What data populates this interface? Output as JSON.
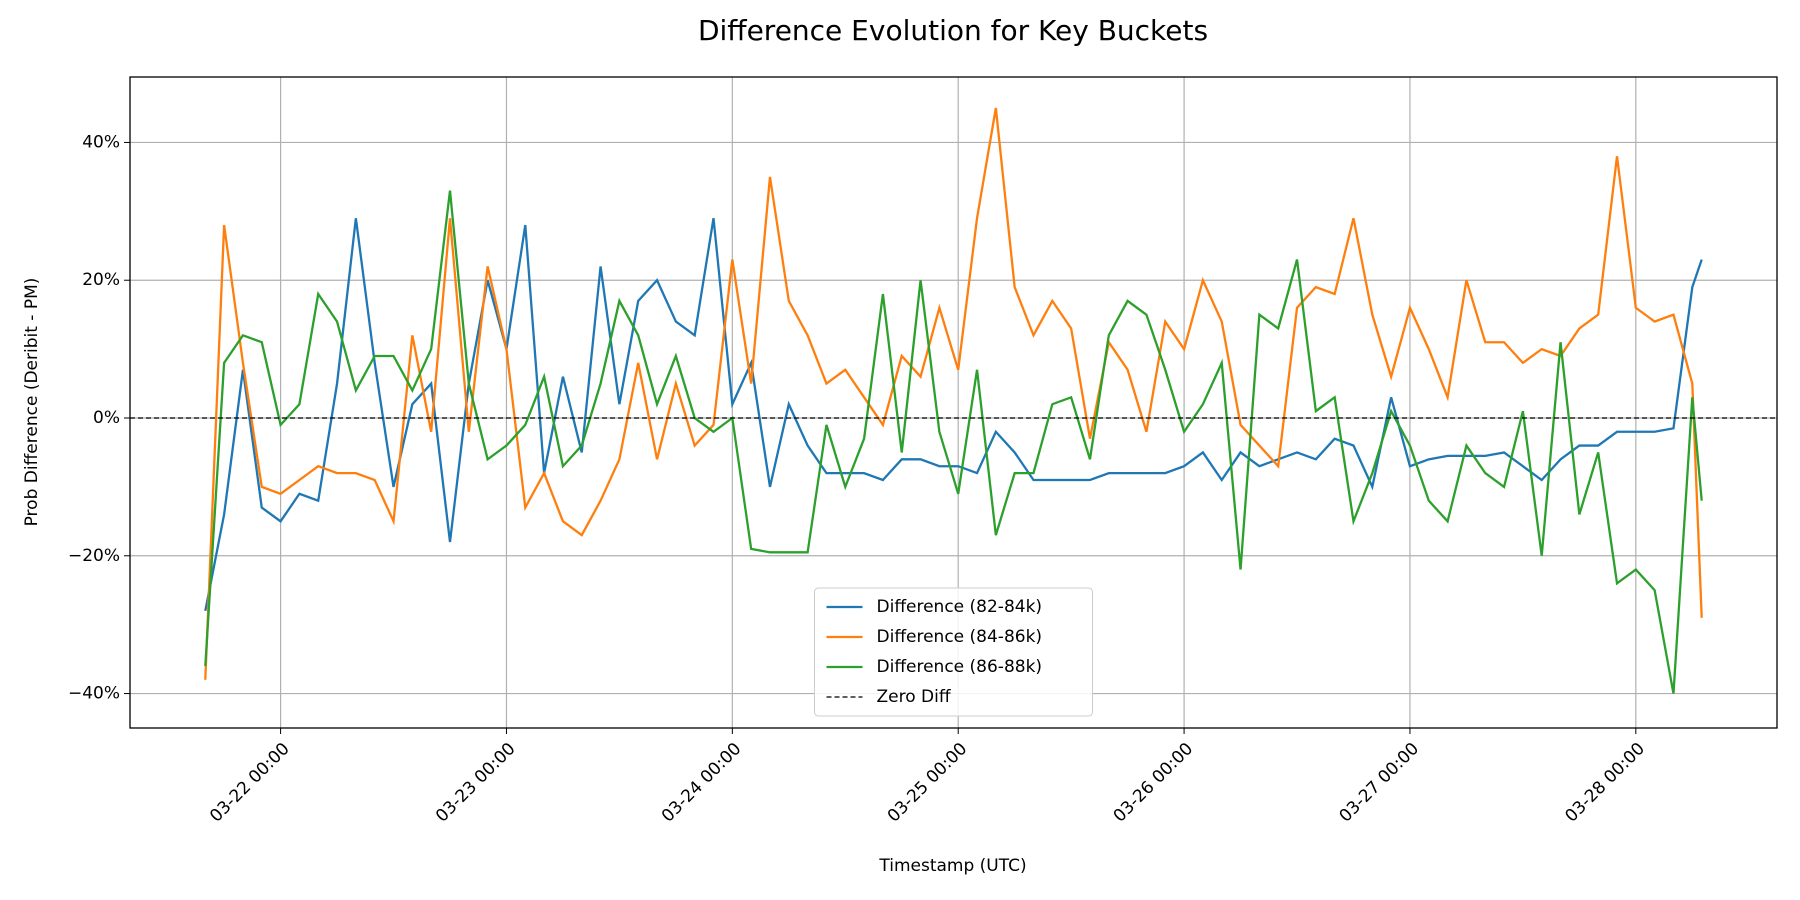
{
  "chart_data": {
    "type": "line",
    "title": "Difference Evolution for Key Buckets",
    "x_label": "Timestamp (UTC)",
    "y_label": "Prob Difference (Deribit - PM)",
    "x": [
      "03-21 16:00",
      "03-21 18:00",
      "03-21 20:00",
      "03-21 22:00",
      "03-22 00:00",
      "03-22 02:00",
      "03-22 04:00",
      "03-22 06:00",
      "03-22 08:00",
      "03-22 10:00",
      "03-22 12:00",
      "03-22 14:00",
      "03-22 16:00",
      "03-22 18:00",
      "03-22 20:00",
      "03-22 22:00",
      "03-23 00:00",
      "03-23 02:00",
      "03-23 04:00",
      "03-23 06:00",
      "03-23 08:00",
      "03-23 10:00",
      "03-23 12:00",
      "03-23 14:00",
      "03-23 16:00",
      "03-23 18:00",
      "03-23 20:00",
      "03-23 22:00",
      "03-24 00:00",
      "03-24 02:00",
      "03-24 04:00",
      "03-24 06:00",
      "03-24 08:00",
      "03-24 10:00",
      "03-24 12:00",
      "03-24 14:00",
      "03-24 16:00",
      "03-24 18:00",
      "03-24 20:00",
      "03-24 22:00",
      "03-25 00:00",
      "03-25 02:00",
      "03-25 04:00",
      "03-25 06:00",
      "03-25 08:00",
      "03-25 10:00",
      "03-25 12:00",
      "03-25 14:00",
      "03-25 16:00",
      "03-25 18:00",
      "03-25 20:00",
      "03-25 22:00",
      "03-26 00:00",
      "03-26 02:00",
      "03-26 04:00",
      "03-26 06:00",
      "03-26 08:00",
      "03-26 10:00",
      "03-26 12:00",
      "03-26 14:00",
      "03-26 16:00",
      "03-26 18:00",
      "03-26 20:00",
      "03-26 22:00",
      "03-27 00:00",
      "03-27 02:00",
      "03-27 04:00",
      "03-27 06:00",
      "03-27 08:00",
      "03-27 10:00",
      "03-27 12:00",
      "03-27 14:00",
      "03-27 16:00",
      "03-27 18:00",
      "03-27 20:00",
      "03-27 22:00",
      "03-28 00:00",
      "03-28 02:00",
      "03-28 04:00",
      "03-28 06:00",
      "03-28 07:00"
    ],
    "series": [
      {
        "name": "Difference (82-84k)",
        "color": "#1f77b4",
        "values": [
          -28,
          -14,
          7,
          -13,
          -15,
          -11,
          -12,
          5,
          29,
          8,
          -10,
          2,
          5,
          -18,
          5,
          20,
          10,
          28,
          -8,
          6,
          -5,
          22,
          2,
          17,
          20,
          14,
          12,
          29,
          2,
          8,
          -10,
          2,
          -4,
          -8,
          -8,
          -8,
          -9,
          -6,
          -6,
          -7,
          -7,
          -8,
          -2,
          -5,
          -9,
          -9,
          -9,
          -9,
          -8,
          -8,
          -8,
          -8,
          -7,
          -5,
          -9,
          -5,
          -7,
          -6,
          -5,
          -6,
          -3,
          -4,
          -10,
          3,
          -7,
          -6,
          -5.5,
          -5.5,
          -5.5,
          -5,
          -7,
          -9,
          -6,
          -4,
          -4,
          -2,
          -2,
          -2,
          -1.5,
          19,
          23
        ]
      },
      {
        "name": "Difference (84-86k)",
        "color": "#ff7f0e",
        "values": [
          -38,
          28,
          8,
          -10,
          -11,
          -9,
          -7,
          -8,
          -8,
          -9,
          -15,
          12,
          -2,
          29,
          -2,
          22,
          10,
          -13,
          -8,
          -15,
          -17,
          -12,
          -6,
          8,
          -6,
          5,
          -4,
          -1,
          23,
          5,
          35,
          17,
          12,
          5,
          7,
          3,
          -1,
          9,
          6,
          16,
          7,
          29,
          45,
          19,
          12,
          17,
          13,
          -3,
          11,
          7,
          -2,
          14,
          10,
          20,
          14,
          -1,
          -4,
          -7,
          16,
          19,
          18,
          29,
          15,
          6,
          16,
          10,
          3,
          20,
          11,
          11,
          8,
          10,
          9,
          13,
          15,
          38,
          16,
          14,
          15,
          5,
          -29
        ]
      },
      {
        "name": "Difference (86-88k)",
        "color": "#2ca02c",
        "values": [
          -36,
          8,
          12,
          11,
          -1,
          2,
          18,
          14,
          4,
          9,
          9,
          4,
          10,
          33,
          5,
          -6,
          -4,
          -1,
          6,
          -7,
          -4,
          5,
          17,
          12,
          2,
          9,
          0,
          -2,
          0,
          -19,
          -19.5,
          -19.5,
          -19.5,
          -1,
          -10,
          -3,
          18,
          -5,
          20,
          -2,
          -11,
          7,
          -17,
          -8,
          -8,
          2,
          3,
          -6,
          12,
          17,
          15,
          7,
          -2,
          2,
          8,
          -22,
          15,
          13,
          23,
          1,
          3,
          -15,
          -8,
          1,
          -4,
          -12,
          -15,
          -4,
          -8,
          -10,
          1,
          -20,
          11,
          -14,
          -5,
          -24,
          -22,
          -25,
          -40,
          3,
          -12
        ]
      }
    ],
    "hline": {
      "name": "Zero Diff",
      "y": 0,
      "color": "#000000",
      "style": "dashed"
    },
    "xlim": [
      "03-21 08:00",
      "03-28 15:00"
    ],
    "xticks": [
      "03-22 00:00",
      "03-23 00:00",
      "03-24 00:00",
      "03-25 00:00",
      "03-26 00:00",
      "03-27 00:00",
      "03-28 00:00"
    ],
    "ylim": [
      -45,
      49.5
    ],
    "yticks": [
      {
        "value": -40,
        "label": "−40%"
      },
      {
        "value": -20,
        "label": "−20%"
      },
      {
        "value": 0,
        "label": "0%"
      },
      {
        "value": 20,
        "label": "20%"
      },
      {
        "value": 40,
        "label": "40%"
      }
    ],
    "grid": true,
    "legend": "lower center"
  }
}
